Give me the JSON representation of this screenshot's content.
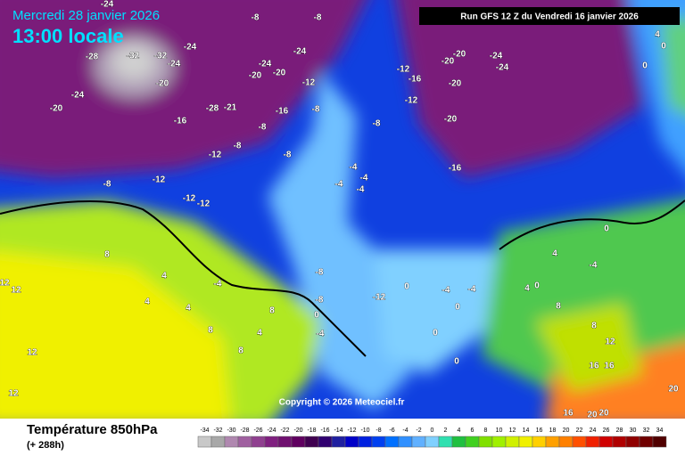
{
  "header": {
    "date": "Mercredi 28 janvier 2026",
    "time": "13:00 locale",
    "run": "Run GFS 12 Z du Vendredi 16 janvier 2026"
  },
  "copyright": "Copyright © 2026 Meteociel.fr",
  "footer": {
    "title": "Température 850hPa",
    "lead": "(+ 288h)"
  },
  "legend": {
    "values": [
      -34,
      -32,
      -30,
      -28,
      -26,
      -24,
      -22,
      -20,
      -18,
      -16,
      -14,
      -12,
      -10,
      -8,
      -6,
      -4,
      -2,
      0,
      2,
      4,
      6,
      8,
      10,
      12,
      14,
      16,
      18,
      20,
      22,
      24,
      26,
      28,
      30,
      32,
      34
    ],
    "colors": [
      "#c8c8c8",
      "#a8a8a8",
      "#b088b0",
      "#a060a0",
      "#904090",
      "#802080",
      "#701070",
      "#600060",
      "#400050",
      "#300070",
      "#2020a0",
      "#0000c8",
      "#0020e0",
      "#0040f0",
      "#0070ff",
      "#3090ff",
      "#60b0ff",
      "#80d0ff",
      "#30e0b0",
      "#20c040",
      "#40d020",
      "#80e000",
      "#a0f000",
      "#d0f000",
      "#f0f000",
      "#ffd000",
      "#ffa000",
      "#ff8000",
      "#ff5000",
      "#f02000",
      "#d00000",
      "#b00000",
      "#900000",
      "#700000",
      "#500000"
    ]
  },
  "map": {
    "labels": [
      -24,
      -8,
      -8,
      -24,
      -28,
      -32,
      -32,
      -24,
      -20,
      -24,
      -20,
      -16,
      -28,
      -21,
      -24,
      -20,
      -20,
      -24,
      -12,
      -8,
      -16,
      -8,
      -8,
      -12,
      -8,
      -8,
      -12,
      -12,
      -12,
      -12,
      -16,
      -12,
      -20,
      -20,
      -24,
      -24,
      -20,
      -20,
      -16,
      -8,
      -4,
      -4,
      -4,
      -4,
      0,
      4,
      0,
      8,
      4,
      -4,
      -8,
      -8,
      0,
      -12,
      0,
      -4,
      -4,
      0,
      0,
      0,
      4,
      4,
      0,
      -4,
      0,
      8,
      8,
      12,
      16,
      16,
      20,
      20,
      16,
      20,
      12,
      12,
      4,
      4,
      8,
      4,
      8,
      12,
      12,
      8,
      -4
    ]
  }
}
